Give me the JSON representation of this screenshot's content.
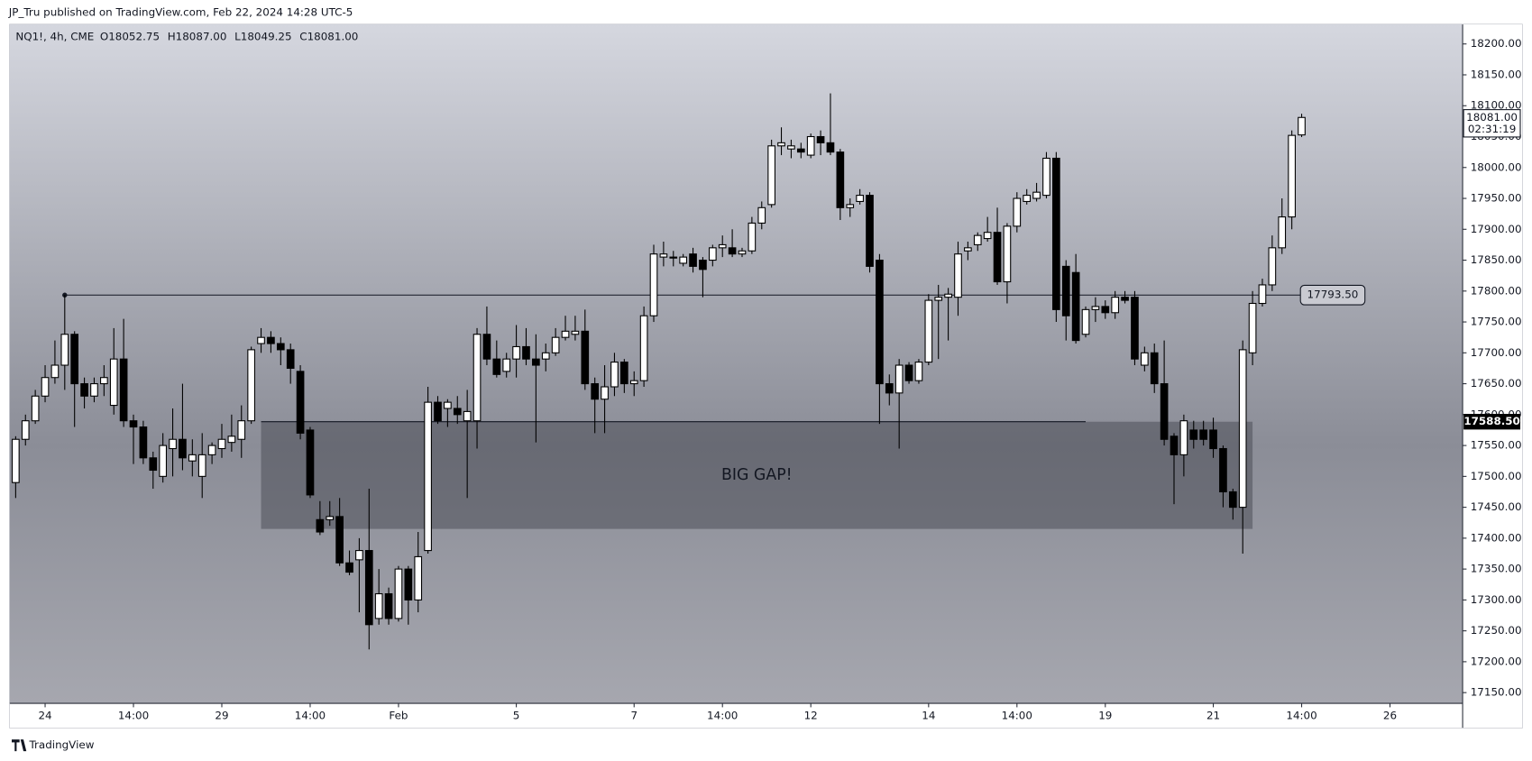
{
  "header": {
    "text": "JP_Tru published on TradingView.com, Feb 22, 2024 14:28 UTC-5"
  },
  "footer": {
    "brand": "TradingView"
  },
  "chart_data": {
    "type": "candlestick",
    "legend": {
      "symbol": "NQ1!, 4h, CME",
      "ohlc": [
        "O18052.75",
        "H18087.00",
        "L18049.25",
        "C18081.00"
      ]
    },
    "up_color": "#ffffff",
    "down_color": "#000000",
    "wick_color": "#000000",
    "open": [
      17490,
      17560,
      17590,
      17630,
      17660,
      17680,
      17730,
      17650,
      17630,
      17650,
      17615,
      17690,
      17590,
      17580,
      17530,
      17500,
      17545,
      17560,
      17525,
      17500,
      17535,
      17545,
      17555,
      17560,
      17590,
      17715,
      17725,
      17715,
      17705,
      17670,
      17575,
      17430,
      17430,
      17435,
      17360,
      17365,
      17380,
      17270,
      17310,
      17270,
      17350,
      17300,
      17380,
      17620,
      17610,
      17610,
      17590,
      17590,
      17730,
      17690,
      17670,
      17690,
      17710,
      17690,
      17690,
      17700,
      17725,
      17730,
      17735,
      17650,
      17625,
      17645,
      17685,
      17650,
      17655,
      17760,
      17855,
      17855,
      17845,
      17860,
      17850,
      17850,
      17870,
      17870,
      17860,
      17865,
      17910,
      17940,
      18035,
      18030,
      18030,
      18020,
      18050,
      18040,
      18025,
      17935,
      17945,
      17955,
      17850,
      17650,
      17635,
      17680,
      17655,
      17685,
      17785,
      17790,
      17790,
      17865,
      17875,
      17885,
      17895,
      17815,
      17905,
      17945,
      17950,
      17955,
      18015,
      17840,
      17830,
      17730,
      17770,
      17775,
      17765,
      17790,
      17790,
      17680,
      17700,
      17650,
      17565,
      17535,
      17575,
      17575,
      17575,
      17545,
      17475,
      17450,
      17700,
      17780,
      17810,
      17870,
      17920,
      18052.75
    ],
    "high": [
      17565,
      17600,
      17640,
      17680,
      17720,
      17794,
      17735,
      17660,
      17660,
      17680,
      17740,
      17755,
      17600,
      17590,
      17540,
      17570,
      17610,
      17650,
      17560,
      17570,
      17555,
      17585,
      17600,
      17615,
      17710,
      17740,
      17735,
      17725,
      17715,
      17680,
      17580,
      17460,
      17460,
      17465,
      17380,
      17400,
      17480,
      17350,
      17320,
      17355,
      17355,
      17410,
      17645,
      17630,
      17625,
      17630,
      17640,
      17740,
      17775,
      17720,
      17700,
      17745,
      17740,
      17730,
      17715,
      17740,
      17760,
      17760,
      17770,
      17660,
      17680,
      17700,
      17690,
      17670,
      17775,
      17875,
      17880,
      17865,
      17860,
      17870,
      17855,
      17875,
      17890,
      17900,
      17870,
      17920,
      17945,
      18045,
      18065,
      18045,
      18040,
      18055,
      18060,
      18120,
      18030,
      17950,
      17965,
      17960,
      17860,
      17665,
      17690,
      17685,
      17690,
      17795,
      17810,
      17805,
      17880,
      17880,
      17895,
      17920,
      17935,
      17910,
      17960,
      17965,
      17975,
      18025,
      18025,
      17850,
      17860,
      17775,
      17790,
      17785,
      17800,
      17800,
      17800,
      17710,
      17715,
      17720,
      17570,
      17600,
      17590,
      17590,
      17595,
      17550,
      17480,
      17720,
      17800,
      17820,
      17890,
      17950,
      18060,
      18087
    ],
    "low": [
      17465,
      17550,
      17585,
      17620,
      17650,
      17640,
      17580,
      17610,
      17620,
      17630,
      17600,
      17580,
      17520,
      17520,
      17480,
      17490,
      17500,
      17510,
      17500,
      17465,
      17520,
      17530,
      17540,
      17530,
      17585,
      17700,
      17700,
      17680,
      17650,
      17560,
      17465,
      17405,
      17420,
      17355,
      17340,
      17280,
      17220,
      17260,
      17260,
      17265,
      17260,
      17280,
      17375,
      17585,
      17580,
      17585,
      17465,
      17545,
      17680,
      17660,
      17660,
      17660,
      17680,
      17555,
      17670,
      17695,
      17720,
      17720,
      17640,
      17570,
      17570,
      17630,
      17635,
      17630,
      17645,
      17750,
      17840,
      17840,
      17840,
      17830,
      17790,
      17840,
      17855,
      17855,
      17855,
      17860,
      17900,
      17935,
      18020,
      18015,
      18015,
      18015,
      18020,
      18020,
      17915,
      17920,
      17940,
      17830,
      17585,
      17615,
      17545,
      17650,
      17650,
      17680,
      17690,
      17720,
      17760,
      17850,
      17865,
      17880,
      17810,
      17780,
      17895,
      17940,
      17945,
      17950,
      17750,
      17720,
      17715,
      17725,
      17750,
      17755,
      17755,
      17780,
      17680,
      17670,
      17635,
      17550,
      17455,
      17500,
      17545,
      17550,
      17530,
      17450,
      17430,
      17375,
      17680,
      17775,
      17800,
      17860,
      17900,
      18049.25
    ],
    "close": [
      17560,
      17590,
      17630,
      17660,
      17680,
      17730,
      17650,
      17630,
      17650,
      17660,
      17690,
      17590,
      17580,
      17530,
      17510,
      17550,
      17560,
      17530,
      17535,
      17535,
      17550,
      17560,
      17565,
      17590,
      17705,
      17725,
      17715,
      17705,
      17675,
      17570,
      17470,
      17410,
      17435,
      17360,
      17345,
      17380,
      17260,
      17310,
      17270,
      17350,
      17300,
      17370,
      17620,
      17590,
      17620,
      17600,
      17605,
      17730,
      17690,
      17665,
      17690,
      17710,
      17690,
      17680,
      17700,
      17725,
      17735,
      17735,
      17650,
      17625,
      17645,
      17685,
      17650,
      17655,
      17760,
      17860,
      17860,
      17855,
      17855,
      17840,
      17835,
      17870,
      17875,
      17860,
      17865,
      17910,
      17935,
      18035,
      18040,
      18035,
      18025,
      18050,
      18040,
      18025,
      17935,
      17940,
      17955,
      17840,
      17650,
      17635,
      17680,
      17655,
      17685,
      17785,
      17790,
      17795,
      17860,
      17870,
      17890,
      17895,
      17815,
      17905,
      17950,
      17955,
      17960,
      18015,
      17770,
      17760,
      17720,
      17770,
      17775,
      17765,
      17790,
      17785,
      17690,
      17700,
      17650,
      17560,
      17535,
      17590,
      17560,
      17560,
      17545,
      17475,
      17450,
      17705,
      17780,
      17810,
      17870,
      17920,
      18052,
      18081
    ],
    "xlim": [
      -0.6,
      147.4
    ],
    "xticks": [
      {
        "value": 3,
        "label": "24"
      },
      {
        "value": 12,
        "label": "14:00"
      },
      {
        "value": 21,
        "label": "29"
      },
      {
        "value": 30,
        "label": "14:00"
      },
      {
        "value": 39,
        "label": "Feb"
      },
      {
        "value": 51,
        "label": "5"
      },
      {
        "value": 63,
        "label": "7"
      },
      {
        "value": 72,
        "label": "14:00"
      },
      {
        "value": 81,
        "label": "12"
      },
      {
        "value": 93,
        "label": "14"
      },
      {
        "value": 102,
        "label": "14:00"
      },
      {
        "value": 111,
        "label": "19"
      },
      {
        "value": 122,
        "label": "21"
      },
      {
        "value": 131,
        "label": "14:00"
      },
      {
        "value": 140,
        "label": "26"
      }
    ],
    "ylim": [
      17132.6,
      18231.6
    ],
    "yticks": [
      {
        "value": 17150,
        "label": "17150.00"
      },
      {
        "value": 17200,
        "label": "17200.00"
      },
      {
        "value": 17250,
        "label": "17250.00"
      },
      {
        "value": 17300,
        "label": "17300.00"
      },
      {
        "value": 17350,
        "label": "17350.00"
      },
      {
        "value": 17400,
        "label": "17400.00"
      },
      {
        "value": 17450,
        "label": "17450.00"
      },
      {
        "value": 17500,
        "label": "17500.00"
      },
      {
        "value": 17550,
        "label": "17550.00"
      },
      {
        "value": 17600,
        "label": "17600.00"
      },
      {
        "value": 17650,
        "label": "17650.00"
      },
      {
        "value": 17700,
        "label": "17700.00"
      },
      {
        "value": 17750,
        "label": "17750.00"
      },
      {
        "value": 17800,
        "label": "17800.00"
      },
      {
        "value": 17850,
        "label": "17850.00"
      },
      {
        "value": 17900,
        "label": "17900.00"
      },
      {
        "value": 17950,
        "label": "17950.00"
      },
      {
        "value": 18000,
        "label": "18000.00"
      },
      {
        "value": 18050,
        "label": "18050.00"
      },
      {
        "value": 18100,
        "label": "18100.00"
      },
      {
        "value": 18150,
        "label": "18150.00"
      },
      {
        "value": 18200,
        "label": "18200.00"
      }
    ],
    "grid": false,
    "horizontal_line": {
      "value": 17793.5,
      "label": "17793.50",
      "start": 5,
      "end": 131
    },
    "gap": {
      "top": 17588.5,
      "bottom": 17415,
      "start": 25,
      "end": 126,
      "text": "BIG GAP!",
      "line_end": 109,
      "top_label": "17588.50"
    },
    "last_price": {
      "value": 18081,
      "label": "18081.00",
      "countdown": "02:31:19"
    }
  }
}
